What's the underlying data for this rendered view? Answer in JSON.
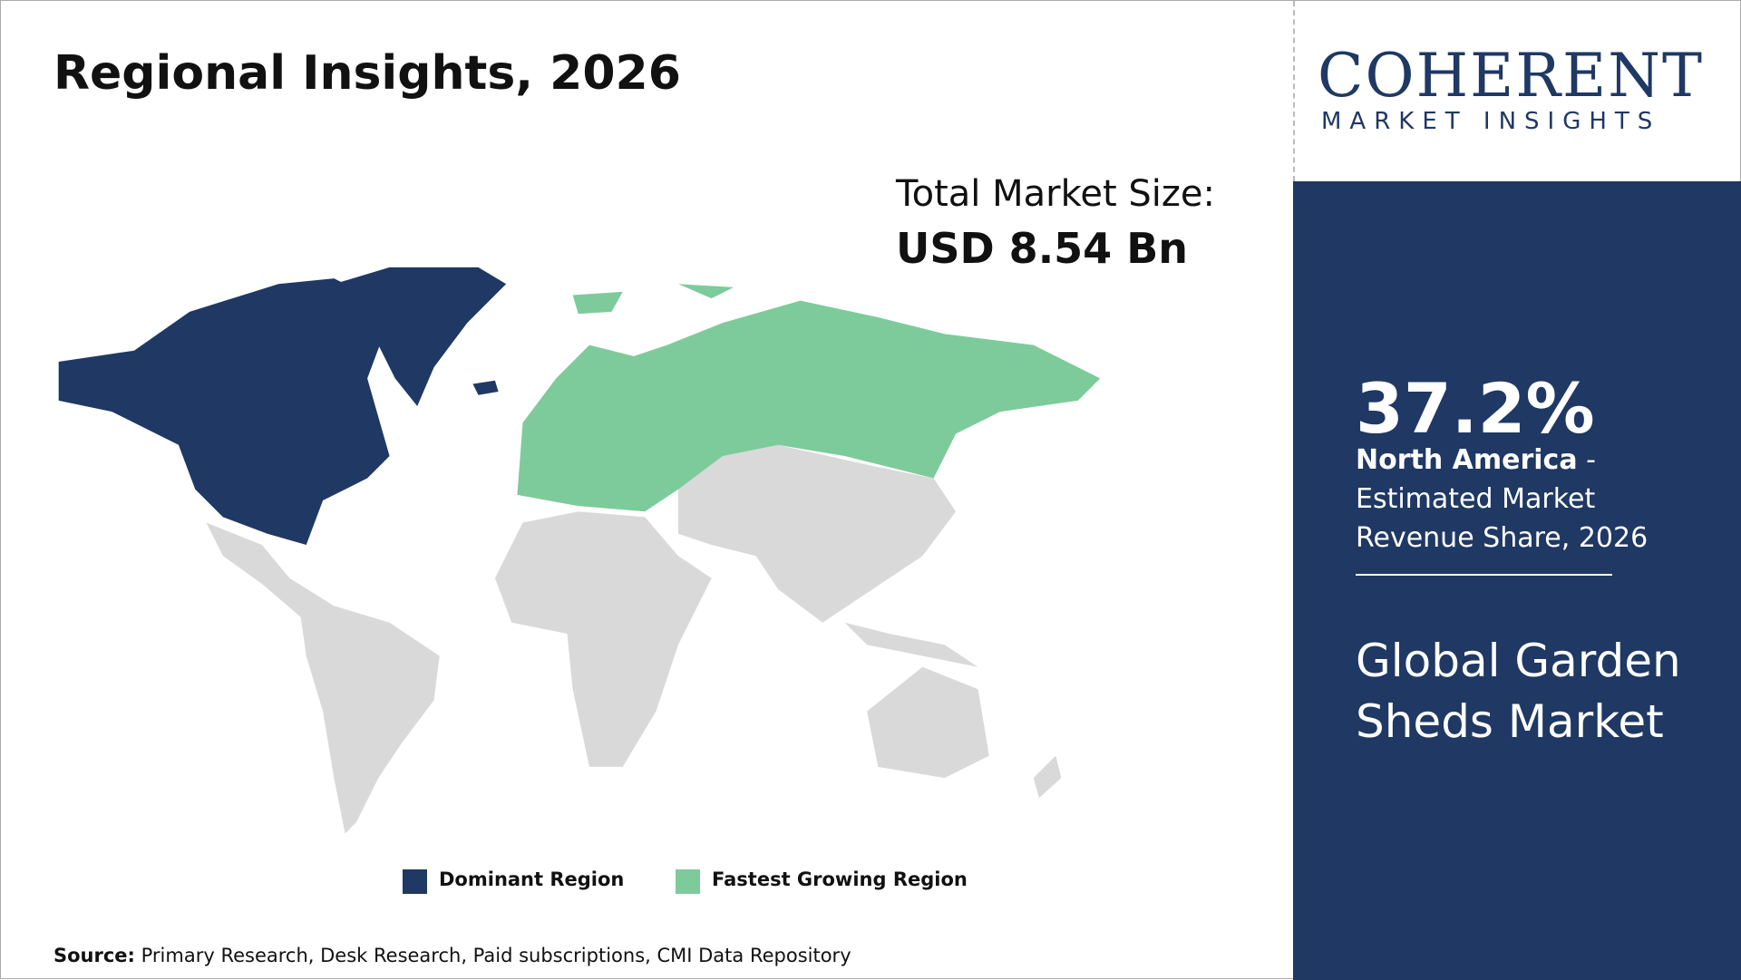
{
  "header": {
    "title": "Regional Insights, 2026"
  },
  "market_size": {
    "label": "Total Market Size:",
    "value": "USD 8.54 Bn"
  },
  "logo": {
    "name": "COHERENT",
    "tagline": "MARKET INSIGHTS"
  },
  "legend": {
    "items": [
      "Dominant Region",
      "Fastest Growing Region"
    ]
  },
  "source": {
    "label": "Source:",
    "text": " Primary Research, Desk Research, Paid subscriptions, CMI Data Repository"
  },
  "panel": {
    "share": "37.2%",
    "region": "North America",
    "description": " - Estimated Market Revenue Share, 2026",
    "market": "Global Garden Sheds Market"
  }
}
